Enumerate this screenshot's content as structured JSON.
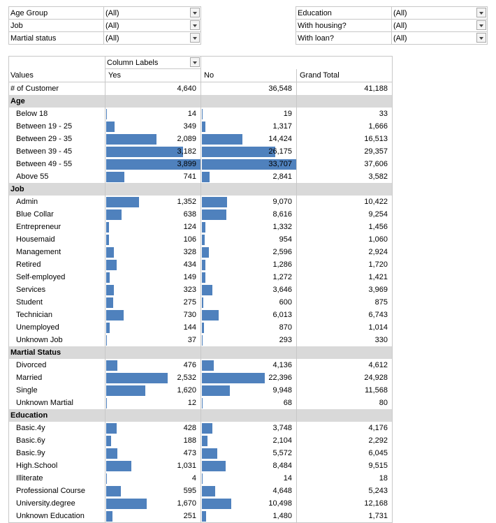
{
  "filters_left": [
    {
      "label": "Age Group",
      "value": "(All)"
    },
    {
      "label": "Job",
      "value": "(All)"
    },
    {
      "label": "Martial status",
      "value": "(All)"
    }
  ],
  "filters_right": [
    {
      "label": "Education",
      "value": "(All)"
    },
    {
      "label": "With housing?",
      "value": "(All)"
    },
    {
      "label": "With loan?",
      "value": "(All)"
    }
  ],
  "pivot": {
    "column_labels": "Column Labels",
    "values_label": "Values",
    "col_yes": "Yes",
    "col_no": "No",
    "col_total": "Grand Total",
    "count_row": {
      "label": "# of Customer",
      "yes": "4,640",
      "no": "36,548",
      "total": "41,188"
    },
    "groups": [
      {
        "title": "Age",
        "rows": [
          {
            "label": "Below 18",
            "yes": "14",
            "no": "19",
            "total": "33",
            "yes_v": 14,
            "no_v": 19
          },
          {
            "label": "Between 19 - 25",
            "yes": "349",
            "no": "1,317",
            "total": "1,666",
            "yes_v": 349,
            "no_v": 1317
          },
          {
            "label": "Between 29 - 35",
            "yes": "2,089",
            "no": "14,424",
            "total": "16,513",
            "yes_v": 2089,
            "no_v": 14424
          },
          {
            "label": "Between 39 - 45",
            "yes": "3,182",
            "no": "26,175",
            "total": "29,357",
            "yes_v": 3182,
            "no_v": 26175
          },
          {
            "label": "Between 49 - 55",
            "yes": "3,899",
            "no": "33,707",
            "total": "37,606",
            "yes_v": 3899,
            "no_v": 33707
          },
          {
            "label": "Above 55",
            "yes": "741",
            "no": "2,841",
            "total": "3,582",
            "yes_v": 741,
            "no_v": 2841
          }
        ]
      },
      {
        "title": "Job",
        "rows": [
          {
            "label": "Admin",
            "yes": "1,352",
            "no": "9,070",
            "total": "10,422",
            "yes_v": 1352,
            "no_v": 9070
          },
          {
            "label": "Blue Collar",
            "yes": "638",
            "no": "8,616",
            "total": "9,254",
            "yes_v": 638,
            "no_v": 8616
          },
          {
            "label": "Entrepreneur",
            "yes": "124",
            "no": "1,332",
            "total": "1,456",
            "yes_v": 124,
            "no_v": 1332
          },
          {
            "label": "Housemaid",
            "yes": "106",
            "no": "954",
            "total": "1,060",
            "yes_v": 106,
            "no_v": 954
          },
          {
            "label": "Management",
            "yes": "328",
            "no": "2,596",
            "total": "2,924",
            "yes_v": 328,
            "no_v": 2596
          },
          {
            "label": "Retired",
            "yes": "434",
            "no": "1,286",
            "total": "1,720",
            "yes_v": 434,
            "no_v": 1286
          },
          {
            "label": "Self-employed",
            "yes": "149",
            "no": "1,272",
            "total": "1,421",
            "yes_v": 149,
            "no_v": 1272
          },
          {
            "label": "Services",
            "yes": "323",
            "no": "3,646",
            "total": "3,969",
            "yes_v": 323,
            "no_v": 3646
          },
          {
            "label": "Student",
            "yes": "275",
            "no": "600",
            "total": "875",
            "yes_v": 275,
            "no_v": 600
          },
          {
            "label": "Technician",
            "yes": "730",
            "no": "6,013",
            "total": "6,743",
            "yes_v": 730,
            "no_v": 6013
          },
          {
            "label": "Unemployed",
            "yes": "144",
            "no": "870",
            "total": "1,014",
            "yes_v": 144,
            "no_v": 870
          },
          {
            "label": "Unknown Job",
            "yes": "37",
            "no": "293",
            "total": "330",
            "yes_v": 37,
            "no_v": 293
          }
        ]
      },
      {
        "title": "Martial Status",
        "rows": [
          {
            "label": "Divorced",
            "yes": "476",
            "no": "4,136",
            "total": "4,612",
            "yes_v": 476,
            "no_v": 4136
          },
          {
            "label": "Married",
            "yes": "2,532",
            "no": "22,396",
            "total": "24,928",
            "yes_v": 2532,
            "no_v": 22396
          },
          {
            "label": "Single",
            "yes": "1,620",
            "no": "9,948",
            "total": "11,568",
            "yes_v": 1620,
            "no_v": 9948
          },
          {
            "label": "Unknown Martial",
            "yes": "12",
            "no": "68",
            "total": "80",
            "yes_v": 12,
            "no_v": 68
          }
        ]
      },
      {
        "title": "Education",
        "rows": [
          {
            "label": "Basic.4y",
            "yes": "428",
            "no": "3,748",
            "total": "4,176",
            "yes_v": 428,
            "no_v": 3748
          },
          {
            "label": "Basic.6y",
            "yes": "188",
            "no": "2,104",
            "total": "2,292",
            "yes_v": 188,
            "no_v": 2104
          },
          {
            "label": "Basic.9y",
            "yes": "473",
            "no": "5,572",
            "total": "6,045",
            "yes_v": 473,
            "no_v": 5572
          },
          {
            "label": "High.School",
            "yes": "1,031",
            "no": "8,484",
            "total": "9,515",
            "yes_v": 1031,
            "no_v": 8484
          },
          {
            "label": "Illiterate",
            "yes": "4",
            "no": "14",
            "total": "18",
            "yes_v": 4,
            "no_v": 14
          },
          {
            "label": "Professional Course",
            "yes": "595",
            "no": "4,648",
            "total": "5,243",
            "yes_v": 595,
            "no_v": 4648
          },
          {
            "label": "University.degree",
            "yes": "1,670",
            "no": "10,498",
            "total": "12,168",
            "yes_v": 1670,
            "no_v": 10498
          },
          {
            "label": "Unknown Education",
            "yes": "251",
            "no": "1,480",
            "total": "1,731",
            "yes_v": 251,
            "no_v": 1480
          }
        ]
      }
    ]
  },
  "bar_color": "#4f81bd",
  "group_fill": "#d9d9d9"
}
